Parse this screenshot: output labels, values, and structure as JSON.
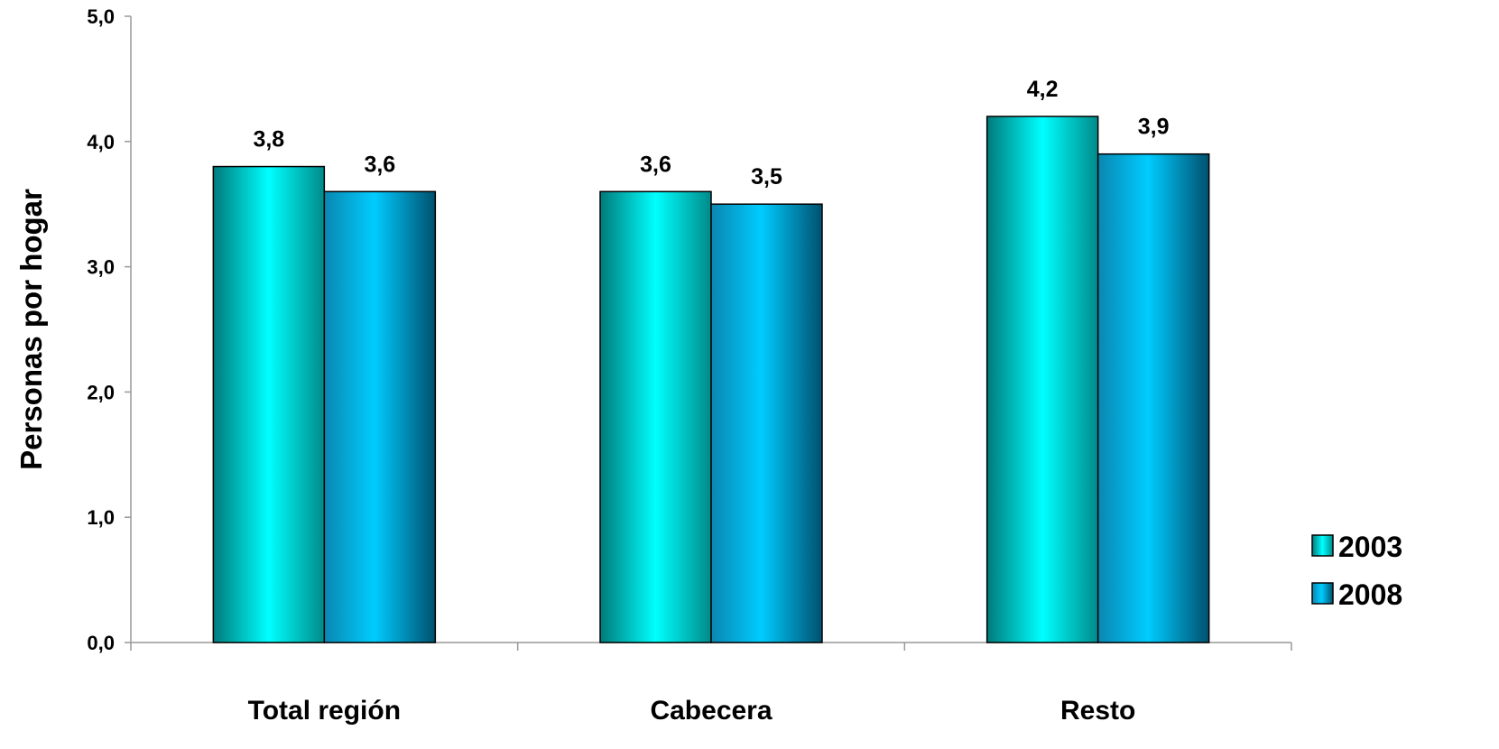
{
  "chart_data": {
    "type": "bar",
    "title": "",
    "xlabel": "",
    "ylabel": "Personas por hogar",
    "ylim": [
      0,
      5
    ],
    "yticks": [
      0,
      1,
      2,
      3,
      4,
      5
    ],
    "ytick_labels": [
      "0,0",
      "1,0",
      "2,0",
      "3,0",
      "4,0",
      "5,0"
    ],
    "categories": [
      "Total región",
      "Cabecera",
      "Resto"
    ],
    "series": [
      {
        "name": "2003",
        "values": [
          3.8,
          3.6,
          4.2
        ],
        "labels": [
          "3,8",
          "3,6",
          "4,2"
        ],
        "color": "#00e5e5"
      },
      {
        "name": "2008",
        "values": [
          3.6,
          3.5,
          3.9
        ],
        "labels": [
          "3,6",
          "3,5",
          "3,9"
        ],
        "color": "#00bfff"
      }
    ],
    "grid": false,
    "legend_position": "right"
  }
}
